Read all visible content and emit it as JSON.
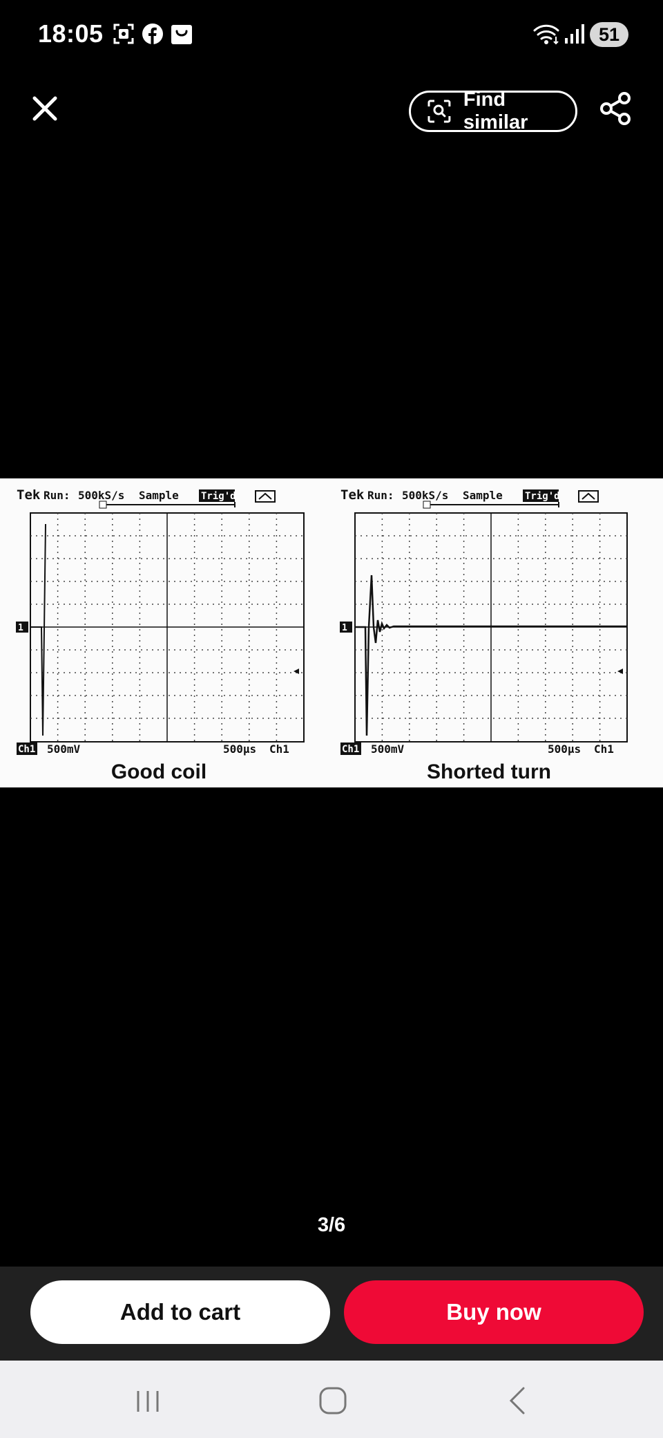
{
  "status_bar": {
    "time": "18:05",
    "battery": "51",
    "icons": [
      "screenshot-icon",
      "facebook-icon",
      "shop-bag-icon",
      "wifi-icon",
      "signal-icon",
      "battery-icon"
    ]
  },
  "toolbar": {
    "close_icon": "close-icon",
    "find_similar_label": "Find similar",
    "find_similar_icon": "scan-search-icon",
    "share_icon": "share-icon"
  },
  "image": {
    "left_panel": {
      "header_brand": "Tek",
      "header_run": "Run:",
      "header_rate": "500kS/s",
      "header_mode": "Sample",
      "header_trig": "Trig'd",
      "channel_badge": "Ch1",
      "volts_div": "500mV",
      "time_div": "500µs",
      "trigger_src": "Ch1",
      "marker": "1",
      "caption": "Good coil"
    },
    "right_panel": {
      "header_brand": "Tek",
      "header_run": "Run:",
      "header_rate": "500kS/s",
      "header_mode": "Sample",
      "header_trig": "Trig'd",
      "channel_badge": "Ch1",
      "volts_div": "500mV",
      "time_div": "500µs",
      "trigger_src": "Ch1",
      "marker": "1",
      "caption": "Shorted turn"
    }
  },
  "pager": {
    "text": "3/6"
  },
  "actions": {
    "add_to_cart": "Add to cart",
    "buy_now": "Buy now",
    "buy_now_color": "#ef0a36"
  },
  "nav": {
    "icons": [
      "recent-apps-icon",
      "home-icon",
      "back-icon"
    ]
  }
}
